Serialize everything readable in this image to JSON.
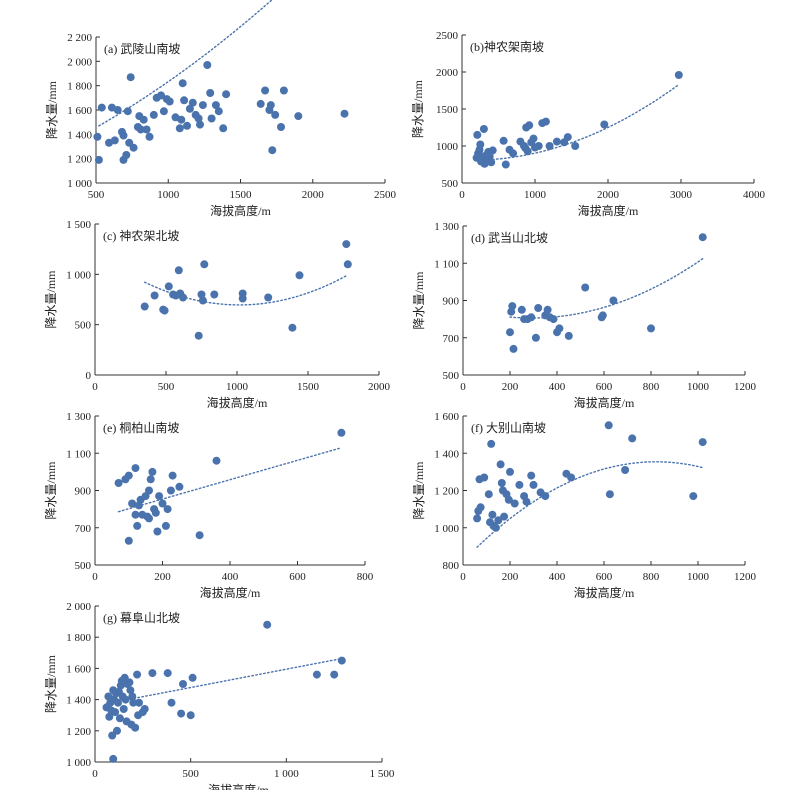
{
  "axis_titles": {
    "x": "海拔高度/m",
    "y": "降水量/mm"
  },
  "colors": {
    "point": "#4a73ad",
    "trend": "#4a73ad",
    "axis": "#333333",
    "bg": "#ffffff"
  },
  "chart_data": [
    {
      "type": "scatter",
      "title": "(a) 武陵山南坡",
      "xlabel": "海拔高度/m",
      "ylabel": "降水量/mm",
      "xlim": [
        500,
        2500
      ],
      "ylim": [
        1000,
        2200
      ],
      "xticks": [
        500,
        1000,
        1500,
        2000,
        2500
      ],
      "xtick_labels": [
        "500",
        "1000",
        "1500",
        "2000",
        "2500"
      ],
      "yticks": [
        1000,
        1200,
        1400,
        1600,
        1800,
        2000,
        2200
      ],
      "ytick_labels": [
        "1 000",
        "1 200",
        "1 400",
        "1 600",
        "1 800",
        "2 000",
        "2 200"
      ],
      "trend": {
        "kind": "poly2",
        "coef": [
          0.00015,
          0.53,
          1153
        ],
        "x_range": [
          520,
          2230
        ]
      },
      "points": [
        [
          510,
          1380
        ],
        [
          520,
          1190
        ],
        [
          540,
          1620
        ],
        [
          590,
          1330
        ],
        [
          610,
          1620
        ],
        [
          630,
          1350
        ],
        [
          650,
          1600
        ],
        [
          680,
          1420
        ],
        [
          690,
          1390
        ],
        [
          690,
          1190
        ],
        [
          710,
          1230
        ],
        [
          720,
          1590
        ],
        [
          730,
          1330
        ],
        [
          740,
          1870
        ],
        [
          760,
          1290
        ],
        [
          790,
          1460
        ],
        [
          800,
          1550
        ],
        [
          810,
          1440
        ],
        [
          830,
          1520
        ],
        [
          850,
          1440
        ],
        [
          870,
          1380
        ],
        [
          900,
          1560
        ],
        [
          920,
          1700
        ],
        [
          950,
          1720
        ],
        [
          970,
          1590
        ],
        [
          990,
          1690
        ],
        [
          1010,
          1670
        ],
        [
          1050,
          1540
        ],
        [
          1080,
          1450
        ],
        [
          1090,
          1520
        ],
        [
          1100,
          1820
        ],
        [
          1110,
          1680
        ],
        [
          1130,
          1470
        ],
        [
          1150,
          1610
        ],
        [
          1170,
          1660
        ],
        [
          1190,
          1560
        ],
        [
          1210,
          1530
        ],
        [
          1220,
          1480
        ],
        [
          1240,
          1640
        ],
        [
          1270,
          1970
        ],
        [
          1290,
          1740
        ],
        [
          1300,
          1530
        ],
        [
          1330,
          1640
        ],
        [
          1350,
          1590
        ],
        [
          1380,
          1450
        ],
        [
          1400,
          1730
        ],
        [
          1640,
          1650
        ],
        [
          1670,
          1760
        ],
        [
          1700,
          1600
        ],
        [
          1710,
          1640
        ],
        [
          1720,
          1270
        ],
        [
          1740,
          1560
        ],
        [
          1780,
          1460
        ],
        [
          1800,
          1760
        ],
        [
          1900,
          1550
        ],
        [
          2220,
          1570
        ]
      ]
    },
    {
      "type": "scatter",
      "title": "(b)神农架南坡",
      "xlabel": "海拔高度/m",
      "ylabel": "降水量/mm",
      "xlim": [
        0,
        4000
      ],
      "ylim": [
        500,
        2500
      ],
      "xticks": [
        0,
        1000,
        2000,
        3000,
        4000
      ],
      "xtick_labels": [
        "0",
        "1000",
        "2000",
        "3000",
        "4000"
      ],
      "yticks": [
        500,
        1000,
        1500,
        2000,
        2500
      ],
      "ytick_labels": [
        "500",
        "1000",
        "1500",
        "2000",
        "2500"
      ],
      "trend": {
        "kind": "poly2",
        "coef": [
          0.000127,
          -0.0337,
          810
        ],
        "x_range": [
          200,
          2950
        ]
      },
      "points": [
        [
          200,
          840
        ],
        [
          210,
          1150
        ],
        [
          220,
          900
        ],
        [
          240,
          950
        ],
        [
          250,
          1020
        ],
        [
          260,
          790
        ],
        [
          280,
          860
        ],
        [
          300,
          1230
        ],
        [
          310,
          760
        ],
        [
          330,
          800
        ],
        [
          340,
          880
        ],
        [
          360,
          920
        ],
        [
          380,
          860
        ],
        [
          400,
          780
        ],
        [
          420,
          940
        ],
        [
          570,
          1070
        ],
        [
          600,
          750
        ],
        [
          650,
          950
        ],
        [
          700,
          900
        ],
        [
          800,
          1060
        ],
        [
          850,
          1000
        ],
        [
          870,
          970
        ],
        [
          880,
          1250
        ],
        [
          900,
          930
        ],
        [
          920,
          1280
        ],
        [
          950,
          1050
        ],
        [
          980,
          1100
        ],
        [
          1000,
          980
        ],
        [
          1050,
          1000
        ],
        [
          1100,
          1310
        ],
        [
          1150,
          1330
        ],
        [
          1200,
          1000
        ],
        [
          1300,
          1060
        ],
        [
          1400,
          1050
        ],
        [
          1450,
          1120
        ],
        [
          1550,
          1000
        ],
        [
          1950,
          1290
        ],
        [
          2970,
          1960
        ]
      ]
    },
    {
      "type": "scatter",
      "title": "(c) 神农架北坡",
      "xlabel": "海拔高度/m",
      "ylabel": "降水量/mm",
      "xlim": [
        0,
        2000
      ],
      "ylim": [
        0,
        1500
      ],
      "xticks": [
        0,
        500,
        1000,
        1500,
        2000
      ],
      "xtick_labels": [
        "0",
        "500",
        "1000",
        "1500",
        "2000"
      ],
      "yticks": [
        0,
        500,
        1000,
        1500
      ],
      "ytick_labels": [
        "0",
        "500",
        "1 000",
        "1 500"
      ],
      "trend": {
        "kind": "poly2",
        "coef": [
          0.00051,
          -1.036,
          1222
        ],
        "x_range": [
          350,
          1780
        ]
      },
      "points": [
        [
          350,
          680
        ],
        [
          420,
          790
        ],
        [
          480,
          650
        ],
        [
          490,
          640
        ],
        [
          520,
          880
        ],
        [
          550,
          800
        ],
        [
          570,
          790
        ],
        [
          590,
          1040
        ],
        [
          600,
          810
        ],
        [
          620,
          770
        ],
        [
          730,
          390
        ],
        [
          750,
          800
        ],
        [
          760,
          740
        ],
        [
          770,
          1100
        ],
        [
          840,
          800
        ],
        [
          1040,
          810
        ],
        [
          1040,
          760
        ],
        [
          1220,
          770
        ],
        [
          1390,
          470
        ],
        [
          1440,
          990
        ],
        [
          1770,
          1300
        ],
        [
          1780,
          1100
        ]
      ]
    },
    {
      "type": "scatter",
      "title": "(d) 武当山北坡",
      "xlabel": "海拔高度/m",
      "ylabel": "降水量/mm",
      "xlim": [
        0,
        1200
      ],
      "ylim": [
        500,
        1300
      ],
      "xticks": [
        0,
        200,
        400,
        600,
        800,
        1000,
        1200
      ],
      "xtick_labels": [
        "0",
        "200",
        "400",
        "600",
        "800",
        "1000",
        "1200"
      ],
      "yticks": [
        500,
        700,
        900,
        1100,
        1300
      ],
      "ytick_labels": [
        "500",
        "700",
        "900",
        "1 100",
        "1 300"
      ],
      "trend": {
        "kind": "poly2",
        "coef": [
          0.0006,
          -0.35,
          857
        ],
        "x_range": [
          200,
          1020
        ]
      },
      "points": [
        [
          200,
          730
        ],
        [
          205,
          840
        ],
        [
          210,
          870
        ],
        [
          215,
          640
        ],
        [
          250,
          850
        ],
        [
          260,
          800
        ],
        [
          275,
          800
        ],
        [
          290,
          810
        ],
        [
          310,
          700
        ],
        [
          320,
          860
        ],
        [
          350,
          820
        ],
        [
          360,
          850
        ],
        [
          370,
          810
        ],
        [
          385,
          800
        ],
        [
          400,
          730
        ],
        [
          410,
          750
        ],
        [
          450,
          710
        ],
        [
          520,
          970
        ],
        [
          590,
          810
        ],
        [
          595,
          820
        ],
        [
          640,
          900
        ],
        [
          800,
          750
        ],
        [
          1020,
          1240
        ]
      ]
    },
    {
      "type": "scatter",
      "title": "(e) 桐柏山南坡",
      "xlabel": "海拔高度/m",
      "ylabel": "降水量/mm",
      "xlim": [
        0,
        800
      ],
      "ylim": [
        500,
        1300
      ],
      "xticks": [
        0,
        200,
        400,
        600,
        800
      ],
      "xtick_labels": [
        "0",
        "200",
        "400",
        "600",
        "800"
      ],
      "yticks": [
        500,
        700,
        900,
        1100,
        1300
      ],
      "ytick_labels": [
        "500",
        "700",
        "900",
        "1 100",
        "1 300"
      ],
      "trend": {
        "kind": "linear",
        "coef": [
          0.52,
          750
        ],
        "x_range": [
          70,
          730
        ]
      },
      "points": [
        [
          70,
          940
        ],
        [
          90,
          960
        ],
        [
          100,
          630
        ],
        [
          100,
          980
        ],
        [
          110,
          830
        ],
        [
          120,
          1020
        ],
        [
          120,
          770
        ],
        [
          125,
          710
        ],
        [
          130,
          820
        ],
        [
          135,
          850
        ],
        [
          140,
          770
        ],
        [
          150,
          870
        ],
        [
          155,
          760
        ],
        [
          160,
          900
        ],
        [
          160,
          750
        ],
        [
          165,
          960
        ],
        [
          170,
          1000
        ],
        [
          175,
          800
        ],
        [
          180,
          780
        ],
        [
          185,
          680
        ],
        [
          190,
          870
        ],
        [
          200,
          830
        ],
        [
          210,
          710
        ],
        [
          215,
          800
        ],
        [
          225,
          900
        ],
        [
          230,
          980
        ],
        [
          250,
          920
        ],
        [
          310,
          660
        ],
        [
          360,
          1060
        ],
        [
          730,
          1210
        ]
      ]
    },
    {
      "type": "scatter",
      "title": "(f) 大别山南坡",
      "xlabel": "海拔高度/m",
      "ylabel": "降水量/mm",
      "xlim": [
        0,
        1200
      ],
      "ylim": [
        800,
        1600
      ],
      "xticks": [
        0,
        200,
        400,
        600,
        800,
        1000,
        1200
      ],
      "xtick_labels": [
        "0",
        "200",
        "400",
        "600",
        "800",
        "1000",
        "1200"
      ],
      "yticks": [
        800,
        1000,
        1200,
        1400,
        1600
      ],
      "ytick_labels": [
        "800",
        "1 000",
        "1 200",
        "1 400",
        "1 600"
      ],
      "trend": {
        "kind": "poly2",
        "coef": [
          -0.00079,
          1.298,
          821
        ],
        "x_range": [
          60,
          1020
        ]
      },
      "points": [
        [
          60,
          1050
        ],
        [
          65,
          1090
        ],
        [
          70,
          1260
        ],
        [
          75,
          1110
        ],
        [
          90,
          1270
        ],
        [
          110,
          1180
        ],
        [
          115,
          1030
        ],
        [
          120,
          1450
        ],
        [
          125,
          1070
        ],
        [
          130,
          1010
        ],
        [
          140,
          1000
        ],
        [
          150,
          1040
        ],
        [
          160,
          1340
        ],
        [
          165,
          1240
        ],
        [
          170,
          1200
        ],
        [
          175,
          1060
        ],
        [
          185,
          1180
        ],
        [
          195,
          1150
        ],
        [
          200,
          1300
        ],
        [
          220,
          1130
        ],
        [
          240,
          1230
        ],
        [
          260,
          1170
        ],
        [
          270,
          1140
        ],
        [
          290,
          1280
        ],
        [
          300,
          1230
        ],
        [
          330,
          1190
        ],
        [
          350,
          1170
        ],
        [
          440,
          1290
        ],
        [
          460,
          1270
        ],
        [
          620,
          1550
        ],
        [
          625,
          1180
        ],
        [
          690,
          1310
        ],
        [
          720,
          1480
        ],
        [
          980,
          1170
        ],
        [
          1020,
          1460
        ]
      ]
    },
    {
      "type": "scatter",
      "title": "(g) 幕阜山北坡",
      "xlabel": "海拔高度/m",
      "ylabel": "降水量/mm",
      "xlim": [
        0,
        1500
      ],
      "ylim": [
        1000,
        2000
      ],
      "xticks": [
        0,
        500,
        1000,
        1500
      ],
      "xtick_labels": [
        "0",
        "500",
        "1 000",
        "1 500"
      ],
      "yticks": [
        1000,
        1200,
        1400,
        1600,
        1800,
        2000
      ],
      "ytick_labels": [
        "1 000",
        "1 200",
        "1 400",
        "1 600",
        "1 800",
        "2 000"
      ],
      "trend": {
        "kind": "linear",
        "coef": [
          0.235,
          1360
        ],
        "x_range": [
          60,
          1290
        ]
      },
      "points": [
        [
          60,
          1350
        ],
        [
          70,
          1420
        ],
        [
          75,
          1290
        ],
        [
          80,
          1380
        ],
        [
          85,
          1330
        ],
        [
          90,
          1170
        ],
        [
          95,
          1020
        ],
        [
          95,
          1460
        ],
        [
          100,
          1400
        ],
        [
          105,
          1320
        ],
        [
          110,
          1440
        ],
        [
          115,
          1200
        ],
        [
          120,
          1380
        ],
        [
          125,
          1450
        ],
        [
          130,
          1280
        ],
        [
          135,
          1490
        ],
        [
          140,
          1520
        ],
        [
          145,
          1420
        ],
        [
          150,
          1340
        ],
        [
          155,
          1540
        ],
        [
          160,
          1400
        ],
        [
          165,
          1260
        ],
        [
          170,
          1500
        ],
        [
          180,
          1510
        ],
        [
          185,
          1460
        ],
        [
          190,
          1240
        ],
        [
          195,
          1420
        ],
        [
          200,
          1380
        ],
        [
          210,
          1220
        ],
        [
          220,
          1560
        ],
        [
          225,
          1300
        ],
        [
          230,
          1380
        ],
        [
          250,
          1320
        ],
        [
          260,
          1340
        ],
        [
          300,
          1570
        ],
        [
          380,
          1570
        ],
        [
          400,
          1380
        ],
        [
          450,
          1310
        ],
        [
          460,
          1500
        ],
        [
          500,
          1300
        ],
        [
          510,
          1540
        ],
        [
          900,
          1880
        ],
        [
          1160,
          1560
        ],
        [
          1250,
          1560
        ],
        [
          1290,
          1650
        ]
      ]
    }
  ]
}
